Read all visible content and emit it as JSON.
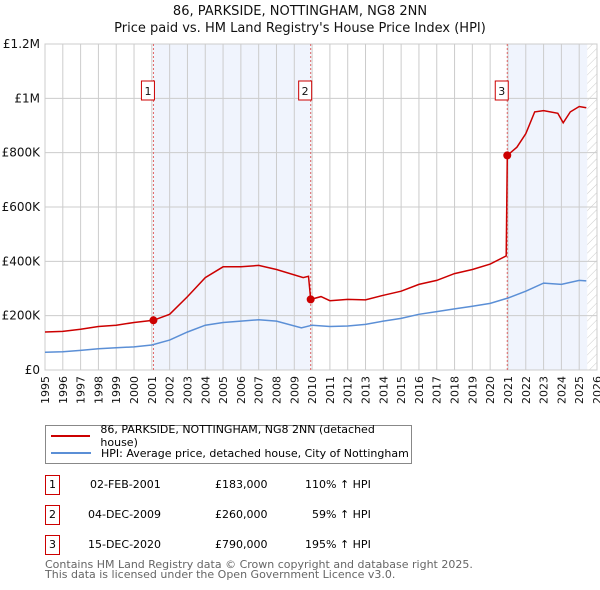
{
  "chart_data": {
    "type": "line",
    "title": "86, PARKSIDE, NOTTINGHAM, NG8 2NN",
    "subtitle": "Price paid vs. HM Land Registry's House Price Index (HPI)",
    "xlim": [
      1995,
      2026
    ],
    "ylim": [
      0,
      1200000
    ],
    "x_ticks": [
      "1995",
      "1996",
      "1997",
      "1998",
      "1999",
      "2000",
      "2001",
      "2002",
      "2003",
      "2004",
      "2005",
      "2006",
      "2007",
      "2008",
      "2009",
      "2010",
      "2011",
      "2012",
      "2013",
      "2014",
      "2015",
      "2016",
      "2017",
      "2018",
      "2019",
      "2020",
      "2021",
      "2022",
      "2023",
      "2024",
      "2025",
      "2026"
    ],
    "y_ticks": [
      {
        "v": 0,
        "label": "£0"
      },
      {
        "v": 200000,
        "label": "£200K"
      },
      {
        "v": 400000,
        "label": "£400K"
      },
      {
        "v": 600000,
        "label": "£600K"
      },
      {
        "v": 800000,
        "label": "£800K"
      },
      {
        "v": 1000000,
        "label": "£1M"
      },
      {
        "v": 1200000,
        "label": "£1.2M"
      }
    ],
    "grid": true,
    "series": [
      {
        "name": "86, PARKSIDE, NOTTINGHAM, NG8 2NN (detached house)",
        "color": "#cc0000",
        "x": [
          1995,
          1996,
          1997,
          1998,
          1999,
          2000,
          2001.09,
          2002,
          2003,
          2004,
          2005,
          2006,
          2007,
          2008,
          2009.5,
          2009.8,
          2009.92,
          2010.5,
          2011,
          2012,
          2013,
          2014,
          2015,
          2016,
          2017,
          2018,
          2019,
          2020,
          2020.9,
          2020.96,
          2021.5,
          2022,
          2022.5,
          2023,
          2023.8,
          2024.1,
          2024.5,
          2025,
          2025.4
        ],
        "y": [
          140000,
          142000,
          150000,
          160000,
          165000,
          175000,
          183000,
          205000,
          270000,
          340000,
          380000,
          380000,
          385000,
          370000,
          340000,
          345000,
          260000,
          270000,
          255000,
          260000,
          258000,
          275000,
          290000,
          315000,
          330000,
          355000,
          370000,
          390000,
          420000,
          790000,
          820000,
          870000,
          950000,
          955000,
          945000,
          910000,
          950000,
          970000,
          965000
        ]
      },
      {
        "name": "HPI: Average price, detached house, City of Nottingham",
        "color": "#5b8fd6",
        "x": [
          1995,
          1996,
          1997,
          1998,
          1999,
          2000,
          2001,
          2002,
          2003,
          2004,
          2005,
          2006,
          2007,
          2008,
          2009.4,
          2010,
          2011,
          2012,
          2013,
          2014,
          2015,
          2016,
          2017,
          2018,
          2019,
          2020,
          2021,
          2022,
          2023,
          2024,
          2025,
          2025.4
        ],
        "y": [
          65000,
          67000,
          72000,
          78000,
          82000,
          85000,
          92000,
          110000,
          140000,
          165000,
          175000,
          180000,
          185000,
          180000,
          155000,
          165000,
          160000,
          162000,
          168000,
          180000,
          190000,
          205000,
          215000,
          225000,
          235000,
          245000,
          265000,
          290000,
          320000,
          315000,
          330000,
          328000
        ]
      }
    ],
    "sales": [
      {
        "label": "1",
        "x": 2001.09,
        "y": 183000,
        "date": "02-FEB-2001",
        "price": "£183,000",
        "hpi": "110% ↑ HPI"
      },
      {
        "label": "2",
        "x": 2009.92,
        "y": 260000,
        "date": "04-DEC-2009",
        "price": "£260,000",
        "hpi": "59% ↑ HPI"
      },
      {
        "label": "3",
        "x": 2020.96,
        "y": 790000,
        "date": "15-DEC-2020",
        "price": "£790,000",
        "hpi": "195% ↑ HPI"
      }
    ],
    "data_end": 2025.45
  },
  "footer": {
    "line1": "Contains HM Land Registry data © Crown copyright and database right 2025.",
    "line2": "This data is licensed under the Open Government Licence v3.0."
  }
}
